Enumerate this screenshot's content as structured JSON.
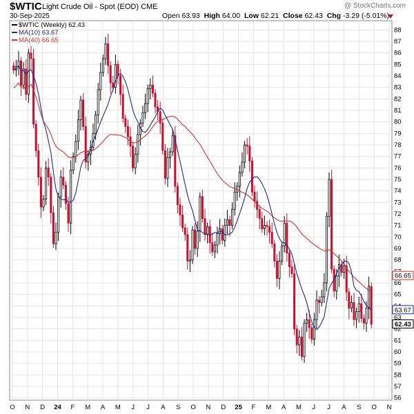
{
  "header": {
    "symbol": "$WTIC",
    "description": "Light Crude Oil - Spot (EOD)",
    "exchange": "CME",
    "date": "30-Sep-2025",
    "brand": "@ StockCharts.com",
    "open_label": "Open",
    "open": "63.93",
    "high_label": "High",
    "high": "64.00",
    "low_label": "Low",
    "low": "62.21",
    "close_label": "Close",
    "close": "62.43",
    "chg_label": "Chg",
    "chg": "-3.29 (-5.01%)"
  },
  "legend": {
    "price": "$WTIC (Weekly) 62.43",
    "ma10": "MA(10) 63.67",
    "ma40": "MA(40) 66.65"
  },
  "colors": {
    "up": "#000000",
    "down": "#c8102e",
    "ma10": "#1f2a8c",
    "ma40": "#d63232",
    "grid": "#e4e4e4"
  },
  "chart_data": {
    "type": "candlestick",
    "title": "$WTIC Light Crude Oil - Spot (EOD)",
    "ylim": [
      55.8,
      88.8
    ],
    "yticks": [
      56,
      57,
      58,
      59,
      60,
      61,
      62,
      63,
      64,
      65,
      66,
      67,
      68,
      69,
      70,
      71,
      72,
      73,
      74,
      75,
      76,
      77,
      78,
      79,
      80,
      81,
      82,
      83,
      84,
      85,
      86,
      87,
      88
    ],
    "xticks": [
      "O",
      "N",
      "D",
      "24",
      "F",
      "M",
      "A",
      "M",
      "J",
      "J",
      "A",
      "S",
      "O",
      "N",
      "D",
      "25",
      "F",
      "M",
      "A",
      "M",
      "J",
      "J",
      "A",
      "S",
      "O",
      "N"
    ],
    "last_labels": [
      {
        "name": "MA(40)",
        "value": "66.65"
      },
      {
        "name": "MA(10)",
        "value": "63.67"
      },
      {
        "name": "Close",
        "value": "62.43"
      }
    ],
    "series": [
      {
        "name": "$WTIC (Weekly)",
        "closes": [
          84.5,
          84.8,
          85.3,
          83.2,
          84.6,
          82.4,
          86.0,
          85.5,
          79.8,
          77.5,
          75.2,
          72.6,
          73.3,
          76.0,
          75.2,
          72.1,
          69.4,
          70.4,
          73.5,
          75.2,
          74.5,
          72.9,
          71.2,
          75.8,
          77.0,
          78.3,
          80.2,
          81.9,
          79.6,
          76.5,
          77.2,
          77.8,
          79.0,
          80.6,
          82.8,
          84.3,
          85.5,
          86.8,
          84.9,
          83.4,
          83.0,
          85.0,
          84.0,
          82.4,
          80.3,
          79.6,
          78.7,
          77.9,
          76.0,
          77.2,
          78.9,
          79.9,
          80.8,
          81.6,
          82.9,
          83.2,
          82.5,
          81.3,
          80.9,
          79.9,
          77.5,
          75.1,
          76.9,
          77.4,
          78.8,
          74.4,
          72.8,
          71.9,
          70.8,
          70.2,
          67.9,
          68.0,
          70.6,
          69.0,
          70.5,
          73.5,
          71.6,
          70.2,
          70.9,
          69.5,
          68.7,
          69.3,
          70.3,
          70.7,
          69.7,
          71.0,
          71.5,
          71.0,
          72.4,
          73.9,
          74.4,
          75.6,
          76.5,
          78.0,
          77.9,
          76.6,
          73.9,
          73.1,
          72.4,
          71.6,
          70.7,
          71.0,
          70.9,
          70.4,
          69.4,
          67.9,
          66.4,
          67.9,
          69.2,
          71.2,
          68.6,
          67.4,
          66.8,
          62.0,
          60.6,
          61.3,
          59.6,
          62.5,
          62.8,
          62.1,
          61.1,
          62.8,
          64.5,
          64.3,
          64.8,
          66.0,
          71.8,
          75.0,
          67.2,
          65.3,
          66.6,
          67.6,
          66.9,
          67.5,
          65.2,
          63.8,
          64.3,
          62.8,
          63.5,
          64.2,
          62.9,
          62.5,
          63.8,
          65.7,
          62.4
        ]
      },
      {
        "name": "MA(10)",
        "last": 63.67
      },
      {
        "name": "MA(40)",
        "last": 66.65
      }
    ],
    "grid": true,
    "legend_position": "top-left"
  }
}
